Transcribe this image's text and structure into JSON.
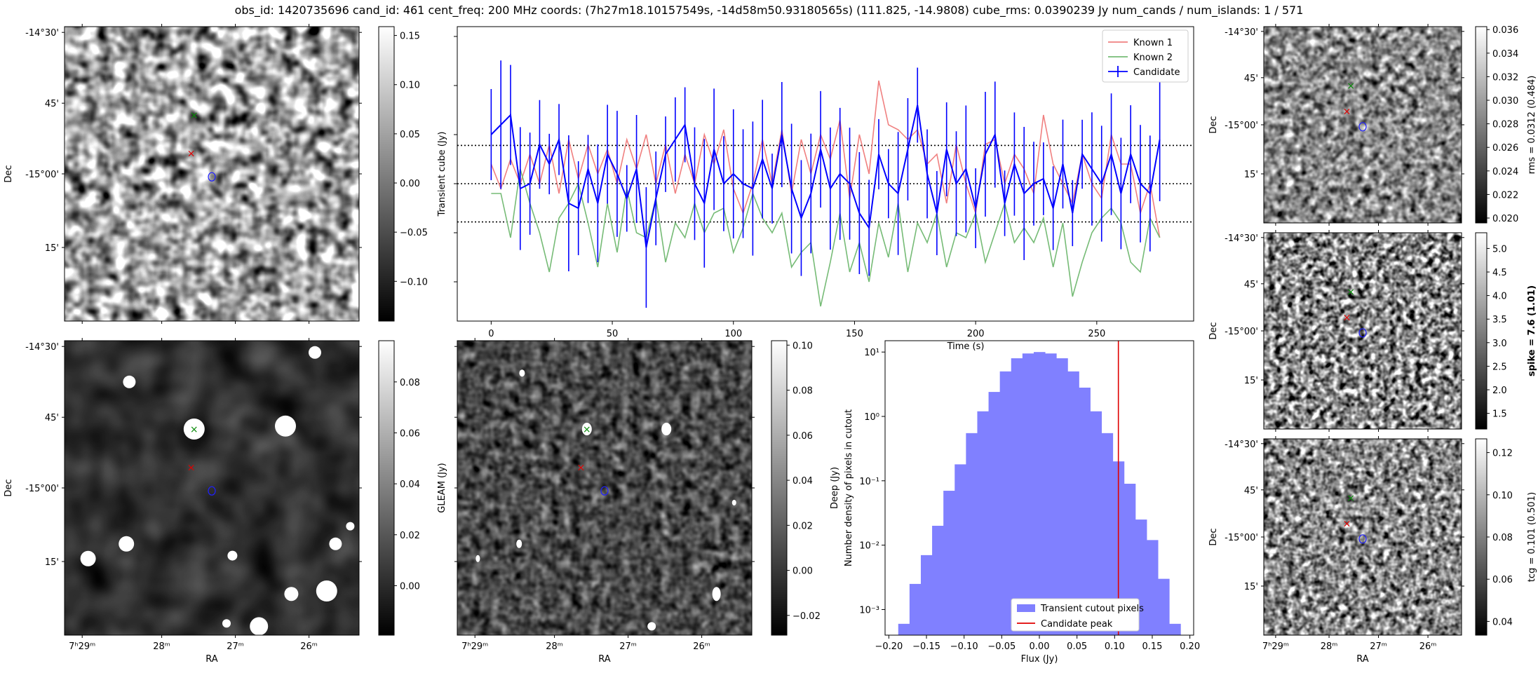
{
  "title": "obs_id: 1420735696 cand_id: 461 cent_freq: 200 MHz coords: (7h27m18.10157549s, -14d58m50.93180565s) (111.825, -14.9808) cube_rms: 0.0390239 Jy num_cands / num_islands: 1 / 571",
  "colors": {
    "known1": "#f08080",
    "known2": "#76bb76",
    "candidate": "#0000ff",
    "hist": "#8080ff",
    "peak": "#e00000"
  },
  "sky_axes": {
    "dec_label": "Dec",
    "ra_label": "RA",
    "dec_ticks": [
      "-14°30'",
      "45'",
      "-15°00'",
      "15'"
    ],
    "ra_ticks": [
      "7ʰ29ᵐ",
      "28ᵐ",
      "27ᵐ",
      "26ᵐ"
    ]
  },
  "markers": {
    "known1": "×",
    "known2": "×",
    "candidate": "○"
  },
  "transient_image": {
    "colorbar_label": "Transient cube (Jy)",
    "colorbar_ticks": [
      "0.15",
      "0.10",
      "0.05",
      "0.00",
      "−0.05",
      "−0.10"
    ]
  },
  "gleam_image": {
    "colorbar_label": "GLEAM (Jy)",
    "colorbar_ticks": [
      "0.08",
      "0.06",
      "0.04",
      "0.02",
      "0.00"
    ]
  },
  "deep_image": {
    "colorbar_label": "Deep (Jy)",
    "colorbar_ticks": [
      "0.10",
      "0.08",
      "0.06",
      "0.04",
      "0.02",
      "0.00",
      "−0.02"
    ]
  },
  "rms_image": {
    "colorbar_label": "rms = 0.0312 (0.484)",
    "colorbar_ticks": [
      "0.036",
      "0.034",
      "0.032",
      "0.030",
      "0.028",
      "0.026",
      "0.024",
      "0.022",
      "0.020"
    ]
  },
  "spike_image": {
    "colorbar_label": "spike = 7.6 (1.01)",
    "colorbar_ticks": [
      "5.0",
      "4.5",
      "4.0",
      "3.5",
      "3.0",
      "2.5",
      "2.0",
      "1.5"
    ]
  },
  "tcg_image": {
    "colorbar_label": "tcg = 0.101 (0.501)",
    "colorbar_ticks": [
      "0.12",
      "0.10",
      "0.08",
      "0.06",
      "0.04"
    ]
  },
  "chart_data": [
    {
      "type": "line",
      "xlabel": "Time (s)",
      "xticks": [
        "0",
        "50",
        "100",
        "150",
        "200",
        "250"
      ],
      "xlim": [
        -14,
        290
      ],
      "ylim": [
        -0.14,
        0.16
      ],
      "hlines": [
        0.039,
        0.0,
        -0.039
      ],
      "legend_position": "upper right",
      "series": [
        {
          "name": "Known 1",
          "x_start": 0,
          "x_step": 4,
          "values": [
            0.02,
            -0.005,
            0.025,
            0.0,
            0.03,
            0.0,
            0.04,
            -0.01,
            0.045,
            0.005,
            0.04,
            0.01,
            0.035,
            0.0,
            0.045,
            0.015,
            0.05,
            0.0,
            0.04,
            -0.01,
            0.03,
            0.0,
            0.05,
            0.02,
            0.055,
            -0.005,
            -0.03,
            0.0,
            0.045,
            0.0,
            0.055,
            -0.01,
            0.045,
            0.01,
            0.05,
            0.025,
            0.065,
            -0.015,
            0.05,
            0.01,
            0.105,
            0.06,
            0.055,
            0.045,
            0.055,
            0.02,
            0.03,
            -0.02,
            0.04,
            0.0,
            -0.03,
            0.04,
            0.045,
            0.0,
            0.03,
            0.015,
            -0.01,
            0.07,
            0.02,
            0.0,
            -0.02,
            0.03,
            0.0,
            -0.015,
            0.05,
            0.02,
            0.02,
            -0.03,
            0.0,
            -0.055
          ]
        },
        {
          "name": "Known 2",
          "x_start": 0,
          "x_step": 4,
          "values": [
            -0.01,
            -0.01,
            -0.055,
            0.015,
            -0.02,
            -0.05,
            -0.09,
            -0.035,
            -0.02,
            0.0,
            -0.04,
            -0.085,
            -0.02,
            -0.07,
            -0.005,
            -0.05,
            -0.055,
            -0.015,
            -0.08,
            -0.04,
            -0.055,
            -0.02,
            -0.05,
            -0.03,
            -0.025,
            -0.07,
            -0.045,
            -0.01,
            -0.035,
            -0.05,
            -0.03,
            -0.085,
            -0.07,
            -0.06,
            -0.125,
            -0.08,
            -0.03,
            -0.09,
            -0.06,
            -0.1,
            -0.04,
            -0.075,
            -0.02,
            -0.09,
            -0.04,
            -0.06,
            -0.03,
            -0.085,
            -0.05,
            -0.055,
            -0.03,
            -0.08,
            -0.05,
            -0.02,
            -0.06,
            -0.045,
            -0.06,
            -0.035,
            -0.085,
            -0.04,
            -0.115,
            -0.08,
            -0.05,
            -0.035,
            -0.025,
            -0.04,
            -0.08,
            -0.09,
            -0.035,
            -0.055
          ]
        },
        {
          "name": "Candidate",
          "x_start": 0,
          "x_step": 4,
          "values": [
            0.05,
            0.06,
            0.07,
            -0.005,
            0.0,
            0.04,
            0.02,
            0.045,
            -0.02,
            -0.025,
            0.015,
            -0.02,
            0.03,
            0.01,
            -0.015,
            0.015,
            -0.065,
            -0.015,
            0.03,
            0.045,
            0.06,
            0.0,
            -0.02,
            0.035,
            0.0,
            0.01,
            0.0,
            -0.005,
            0.025,
            -0.005,
            0.05,
            -0.005,
            -0.035,
            -0.01,
            0.035,
            -0.005,
            0.01,
            0.0,
            -0.03,
            -0.045,
            0.03,
            0.0,
            -0.01,
            0.035,
            0.08,
            0.01,
            -0.03,
            0.035,
            0.0,
            0.015,
            -0.025,
            0.03,
            0.05,
            -0.02,
            0.02,
            -0.01,
            0.0,
            0.005,
            -0.025,
            0.02,
            -0.03,
            0.03,
            0.015,
            0.0,
            0.03,
            -0.01,
            0.03,
            0.0,
            -0.01,
            0.045
          ]
        }
      ]
    },
    {
      "type": "bar",
      "xlabel": "Flux (Jy)",
      "ylabel": "Number density of pixels in cutout",
      "yscale": "log",
      "ylim": [
        0.0004,
        15
      ],
      "xlim": [
        -0.205,
        0.205
      ],
      "xticks": [
        "−0.20",
        "−0.15",
        "−0.10",
        "−0.05",
        "0.00",
        "0.05",
        "0.10",
        "0.15",
        "0.20"
      ],
      "yticks": [
        "10¹",
        "10⁰",
        "10⁻¹",
        "10⁻²",
        "10⁻³"
      ],
      "bin_edges": [
        -0.1875,
        -0.1725,
        -0.1575,
        -0.1425,
        -0.1275,
        -0.1125,
        -0.0975,
        -0.0825,
        -0.0675,
        -0.0525,
        -0.0375,
        -0.0225,
        -0.0075,
        0.0075,
        0.0225,
        0.0375,
        0.0525,
        0.0675,
        0.0825,
        0.0975,
        0.1125,
        0.1275,
        0.1425,
        0.1575,
        0.1725,
        0.1875
      ],
      "values": [
        0.0006,
        0.0025,
        0.007,
        0.02,
        0.07,
        0.18,
        0.55,
        1.2,
        2.4,
        5.0,
        8.0,
        9.5,
        10.0,
        9.5,
        8.0,
        5.0,
        2.8,
        1.2,
        0.55,
        0.2,
        0.09,
        0.025,
        0.012,
        0.003,
        0.0006
      ],
      "vline": 0.105,
      "legend_position": "lower center",
      "legend": [
        "Transient cutout pixels",
        "Candidate peak"
      ]
    }
  ]
}
